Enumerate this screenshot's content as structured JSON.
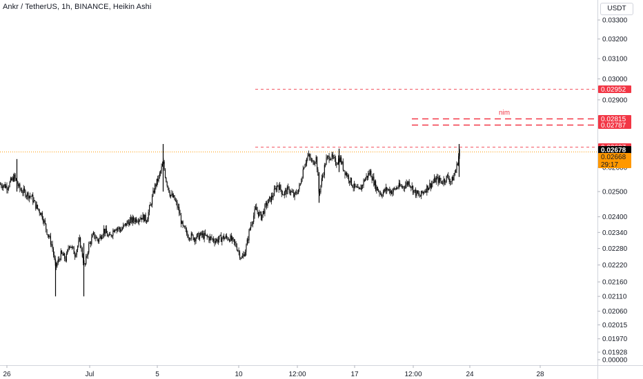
{
  "header": {
    "title": "Ankr / TetherUS, 1h, BINANCE, Heikin Ashi",
    "currency": "USDT"
  },
  "colors": {
    "candle": "#000000",
    "red_line": "#f23645",
    "orange": "#ff9800",
    "axis_text": "#131722",
    "grid": "#f0f3fa"
  },
  "chart_data": {
    "type": "candlestick",
    "price_scale": {
      "scale": "log"
    },
    "y_ticks": [
      {
        "value": 0.033,
        "label": "0.03300"
      },
      {
        "value": 0.032,
        "label": "0.03200"
      },
      {
        "value": 0.031,
        "label": "0.03100"
      },
      {
        "value": 0.03,
        "label": "0.03000"
      },
      {
        "value": 0.029,
        "label": "0.02900"
      },
      {
        "value": 0.026,
        "label": "0.02600"
      },
      {
        "value": 0.025,
        "label": "0.02500"
      },
      {
        "value": 0.024,
        "label": "0.02400"
      },
      {
        "value": 0.0234,
        "label": "0.02340"
      },
      {
        "value": 0.0228,
        "label": "0.02280"
      },
      {
        "value": 0.0222,
        "label": "0.02220"
      },
      {
        "value": 0.0216,
        "label": "0.02160"
      },
      {
        "value": 0.0211,
        "label": "0.02110"
      },
      {
        "value": 0.0206,
        "label": "0.02060"
      },
      {
        "value": 0.02015,
        "label": "0.02015"
      },
      {
        "value": 0.0197,
        "label": "0.01970"
      },
      {
        "value": 0.01928,
        "label": "0.01928"
      },
      {
        "value": 0.0,
        "label": "0.00000"
      }
    ],
    "x_ticks": [
      {
        "label": "26"
      },
      {
        "label": "Jul"
      },
      {
        "label": "5"
      },
      {
        "label": "10"
      },
      {
        "label": "12:00"
      },
      {
        "label": "17"
      },
      {
        "label": "12:00"
      },
      {
        "label": "24"
      },
      {
        "label": "28"
      }
    ],
    "price_labels": [
      {
        "value": 0.02952,
        "label": "0.02952",
        "kind": "red"
      },
      {
        "value": 0.02815,
        "label": "0.02815",
        "kind": "red"
      },
      {
        "value": 0.02787,
        "label": "0.02787",
        "kind": "red"
      },
      {
        "value": 0.02687,
        "label": "0.02687",
        "kind": "red"
      },
      {
        "value": 0.02678,
        "label": "0.02678",
        "kind": "black"
      },
      {
        "value": 0.02668,
        "label": "0.02668",
        "kind": "orange",
        "countdown": "29:17"
      }
    ],
    "horizontal_lines": [
      {
        "value": 0.02952,
        "style": "dashed-thin"
      },
      {
        "value": 0.02815,
        "style": "dashed-thick",
        "label": "nim"
      },
      {
        "value": 0.02787,
        "style": "dashed-thick"
      },
      {
        "value": 0.02687,
        "style": "dashed-thin"
      },
      {
        "value": 0.02668,
        "style": "dotted-orange"
      }
    ],
    "series_path": [
      [
        0,
        0.0253
      ],
      [
        10,
        0.0252
      ],
      [
        20,
        0.0256
      ],
      [
        28,
        0.0251
      ],
      [
        38,
        0.0249
      ],
      [
        45,
        0.0248
      ],
      [
        52,
        0.0244
      ],
      [
        60,
        0.0241
      ],
      [
        68,
        0.0234
      ],
      [
        75,
        0.0229
      ],
      [
        80,
        0.0221
      ],
      [
        88,
        0.0226
      ],
      [
        95,
        0.0224
      ],
      [
        100,
        0.023
      ],
      [
        108,
        0.0226
      ],
      [
        115,
        0.0231
      ],
      [
        122,
        0.0221
      ],
      [
        128,
        0.0229
      ],
      [
        135,
        0.0233
      ],
      [
        142,
        0.0231
      ],
      [
        150,
        0.0235
      ],
      [
        158,
        0.0232
      ],
      [
        166,
        0.0236
      ],
      [
        175,
        0.0235
      ],
      [
        185,
        0.0238
      ],
      [
        195,
        0.0239
      ],
      [
        205,
        0.024
      ],
      [
        212,
        0.0239
      ],
      [
        218,
        0.0245
      ],
      [
        224,
        0.0252
      ],
      [
        230,
        0.0256
      ],
      [
        236,
        0.0262
      ],
      [
        240,
        0.0255
      ],
      [
        246,
        0.0249
      ],
      [
        252,
        0.0247
      ],
      [
        258,
        0.0243
      ],
      [
        264,
        0.0236
      ],
      [
        272,
        0.0233
      ],
      [
        282,
        0.0232
      ],
      [
        292,
        0.0233
      ],
      [
        302,
        0.0232
      ],
      [
        312,
        0.0231
      ],
      [
        322,
        0.0232
      ],
      [
        332,
        0.0232
      ],
      [
        342,
        0.0229
      ],
      [
        350,
        0.0224
      ],
      [
        356,
        0.0228
      ],
      [
        362,
        0.0236
      ],
      [
        370,
        0.0243
      ],
      [
        378,
        0.024
      ],
      [
        386,
        0.0245
      ],
      [
        394,
        0.0248
      ],
      [
        402,
        0.0253
      ],
      [
        410,
        0.0249
      ],
      [
        418,
        0.0251
      ],
      [
        426,
        0.0248
      ],
      [
        434,
        0.0252
      ],
      [
        440,
        0.0261
      ],
      [
        446,
        0.0265
      ],
      [
        452,
        0.0262
      ],
      [
        458,
        0.0264
      ],
      [
        462,
        0.0249
      ],
      [
        466,
        0.0255
      ],
      [
        472,
        0.0263
      ],
      [
        478,
        0.0265
      ],
      [
        486,
        0.0262
      ],
      [
        492,
        0.0264
      ],
      [
        498,
        0.0259
      ],
      [
        504,
        0.0256
      ],
      [
        512,
        0.0252
      ],
      [
        520,
        0.025
      ],
      [
        528,
        0.0255
      ],
      [
        536,
        0.0258
      ],
      [
        544,
        0.0252
      ],
      [
        552,
        0.0249
      ],
      [
        560,
        0.0251
      ],
      [
        568,
        0.025
      ],
      [
        576,
        0.0252
      ],
      [
        584,
        0.0252
      ],
      [
        592,
        0.0254
      ],
      [
        600,
        0.025
      ],
      [
        608,
        0.0248
      ],
      [
        616,
        0.0251
      ],
      [
        624,
        0.0253
      ],
      [
        632,
        0.0255
      ],
      [
        640,
        0.0254
      ],
      [
        648,
        0.0256
      ],
      [
        654,
        0.0254
      ],
      [
        658,
        0.0257
      ],
      [
        662,
        0.0261
      ],
      [
        666,
        0.0268
      ]
    ],
    "spikes": [
      [
        24,
        0.02635,
        0.025
      ],
      [
        80,
        0.0211,
        0.0224
      ],
      [
        121,
        0.0211,
        0.023
      ],
      [
        236,
        0.027,
        0.025
      ],
      [
        462,
        0.02455,
        0.0258
      ],
      [
        491,
        0.0268,
        0.0258
      ],
      [
        665,
        0.027,
        0.0256
      ]
    ],
    "seed": 7
  }
}
